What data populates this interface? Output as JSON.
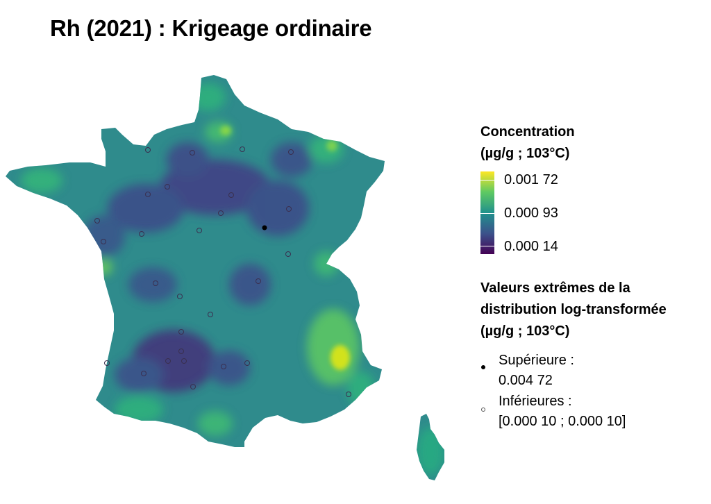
{
  "title": "Rh (2021) : Krigeage ordinaire",
  "colors": {
    "viridis": [
      "#440154",
      "#3b528b",
      "#21918c",
      "#5ec962",
      "#fde725"
    ],
    "map_base": "#2c8a8c",
    "high_point": "#000000",
    "low_point_stroke": "#3a3050"
  },
  "legend": {
    "concentration": {
      "title_line1": "Concentration",
      "title_line2": "(µg/g ; 103°C)",
      "max_label": "0.001 72",
      "mid_label": "0.000 93",
      "min_label": "0.000 14",
      "max": 0.00172,
      "mid": 0.00093,
      "min": 0.00014
    },
    "extremes": {
      "title_line1": "Valeurs extrêmes de la",
      "title_line2": "distribution log-transformée",
      "title_line3": "(µg/g ; 103°C)",
      "upper_label_line1": "Supérieure :",
      "upper_label_line2": "0.004 72",
      "lower_label_line1": "Inférieures :",
      "lower_label_line2": "[0.000 10 ; 0.000 10]"
    }
  }
}
